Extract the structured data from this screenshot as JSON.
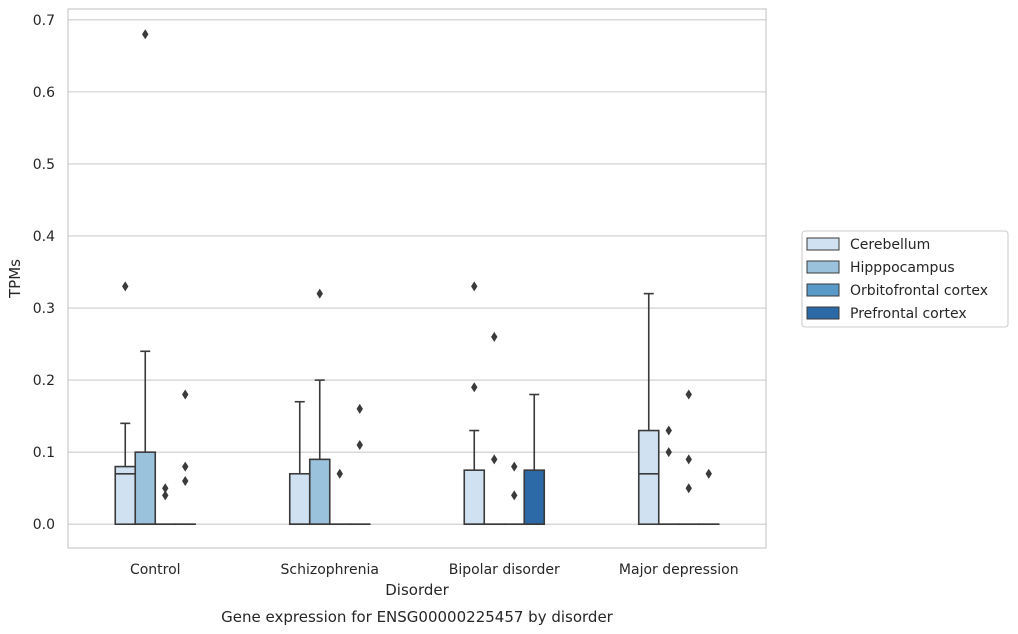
{
  "chart_data": {
    "type": "boxplot",
    "title": "Gene expression for ENSG00000225457 by disorder",
    "xlabel": "Disorder",
    "ylabel": "TPMs",
    "ylim": [
      -0.033,
      0.715
    ],
    "yticks": [
      "0.0",
      "0.1",
      "0.2",
      "0.3",
      "0.4",
      "0.5",
      "0.6",
      "0.7"
    ],
    "grid": "horizontal",
    "legend_position": "right",
    "categories": [
      "Control",
      "Schizophrenia",
      "Bipolar disorder",
      "Major depression"
    ],
    "series": [
      {
        "name": "Cerebellum",
        "color": "#d0e1f2",
        "boxes": [
          {
            "min": 0,
            "q1": 0,
            "median": 0.07,
            "q3": 0.08,
            "max": 0.14,
            "outliers": [
              0.33
            ]
          },
          {
            "min": 0,
            "q1": 0,
            "median": 0,
            "q3": 0.07,
            "max": 0.17,
            "outliers": []
          },
          {
            "min": 0,
            "q1": 0,
            "median": 0,
            "q3": 0.075,
            "max": 0.13,
            "outliers": [
              0.19,
              0.33
            ]
          },
          {
            "min": 0,
            "q1": 0,
            "median": 0.07,
            "q3": 0.13,
            "max": 0.32,
            "outliers": []
          }
        ]
      },
      {
        "name": "Hipppocampus",
        "color": "#9ac2dc",
        "boxes": [
          {
            "min": 0,
            "q1": 0,
            "median": 0,
            "q3": 0.1,
            "max": 0.24,
            "outliers": [
              0.68
            ]
          },
          {
            "min": 0,
            "q1": 0,
            "median": 0,
            "q3": 0.09,
            "max": 0.2,
            "outliers": [
              0.32
            ]
          },
          {
            "min": 0,
            "q1": 0,
            "median": 0,
            "q3": 0,
            "max": 0,
            "outliers": [
              0.09,
              0.26
            ]
          },
          {
            "min": 0,
            "q1": 0,
            "median": 0,
            "q3": 0,
            "max": 0,
            "outliers": [
              0.1,
              0.13
            ]
          }
        ]
      },
      {
        "name": "Orbitofrontal cortex",
        "color": "#5a9ac8",
        "boxes": [
          {
            "min": 0,
            "q1": 0,
            "median": 0,
            "q3": 0,
            "max": 0,
            "outliers": [
              0.04,
              0.05
            ]
          },
          {
            "min": 0,
            "q1": 0,
            "median": 0,
            "q3": 0,
            "max": 0,
            "outliers": [
              0.07
            ]
          },
          {
            "min": 0,
            "q1": 0,
            "median": 0,
            "q3": 0,
            "max": 0,
            "outliers": [
              0.04,
              0.08
            ]
          },
          {
            "min": 0,
            "q1": 0,
            "median": 0,
            "q3": 0,
            "max": 0,
            "outliers": [
              0.05,
              0.09,
              0.18
            ]
          }
        ]
      },
      {
        "name": "Prefrontal cortex",
        "color": "#2b6aa6",
        "boxes": [
          {
            "min": 0,
            "q1": 0,
            "median": 0,
            "q3": 0,
            "max": 0,
            "outliers": [
              0.06,
              0.08,
              0.18
            ]
          },
          {
            "min": 0,
            "q1": 0,
            "median": 0,
            "q3": 0,
            "max": 0,
            "outliers": [
              0.11,
              0.16
            ]
          },
          {
            "min": 0,
            "q1": 0,
            "median": 0,
            "q3": 0.075,
            "max": 0.18,
            "outliers": []
          },
          {
            "min": 0,
            "q1": 0,
            "median": 0,
            "q3": 0,
            "max": 0,
            "outliers": [
              0.07
            ]
          }
        ]
      }
    ]
  }
}
